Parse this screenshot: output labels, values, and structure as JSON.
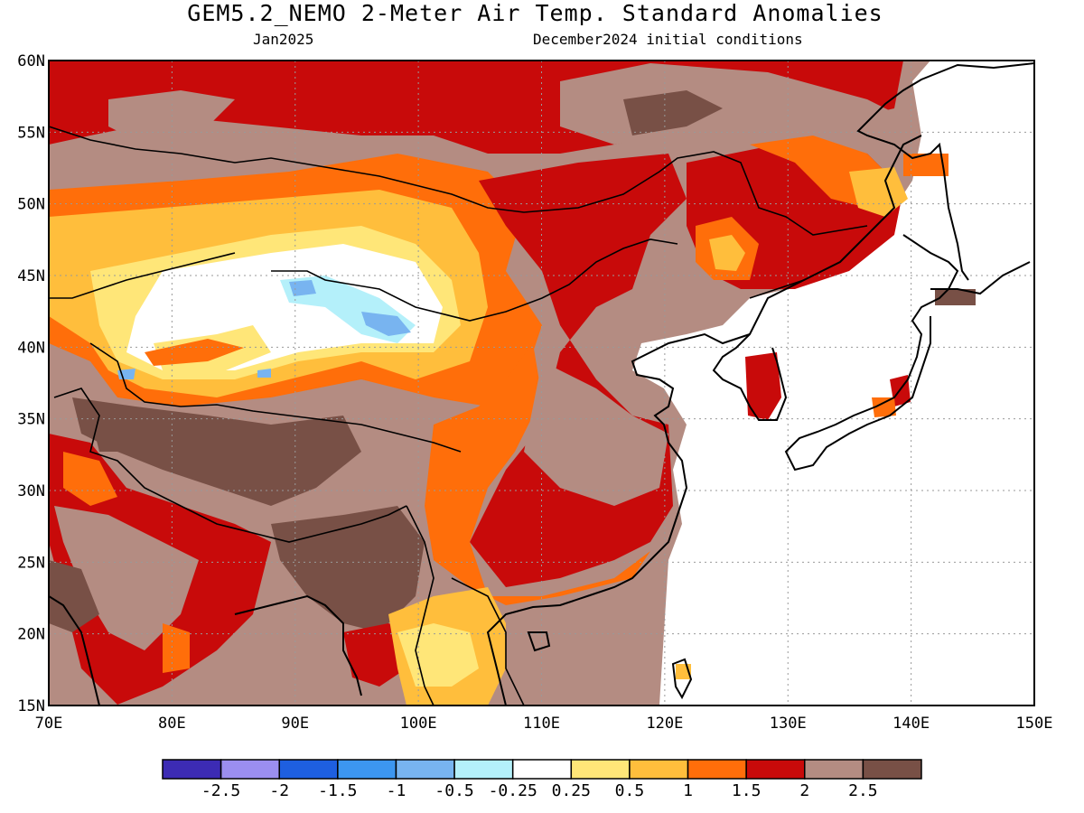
{
  "header": {
    "title": "GEM5.2_NEMO 2-Meter Air Temp. Standard Anomalies",
    "month": "Jan2025",
    "init": "December2024 initial conditions"
  },
  "map": {
    "lon_ticks": [
      "70E",
      "80E",
      "90E",
      "100E",
      "110E",
      "120E",
      "130E",
      "140E",
      "150E"
    ],
    "lat_ticks": [
      "60N",
      "55N",
      "50N",
      "45N",
      "40N",
      "35N",
      "30N",
      "25N",
      "20N",
      "15N"
    ],
    "grid": true
  },
  "colorbar": {
    "colors": [
      "#3c2bb4",
      "#9b8ef0",
      "#1e5fe0",
      "#3c96f0",
      "#78b4f0",
      "#b4f0fa",
      "#ffffff",
      "#ffe678",
      "#ffbe3c",
      "#ff6e0a",
      "#c80a0a",
      "#b48c82",
      "#785046"
    ],
    "labels": [
      "-2.5",
      "-2",
      "-1.5",
      "-1",
      "-0.5",
      "-0.25",
      "0.25",
      "0.5",
      "1",
      "1.5",
      "2",
      "2.5"
    ]
  },
  "colors": {
    "land_outline": "#000000",
    "grid": "#999999"
  }
}
